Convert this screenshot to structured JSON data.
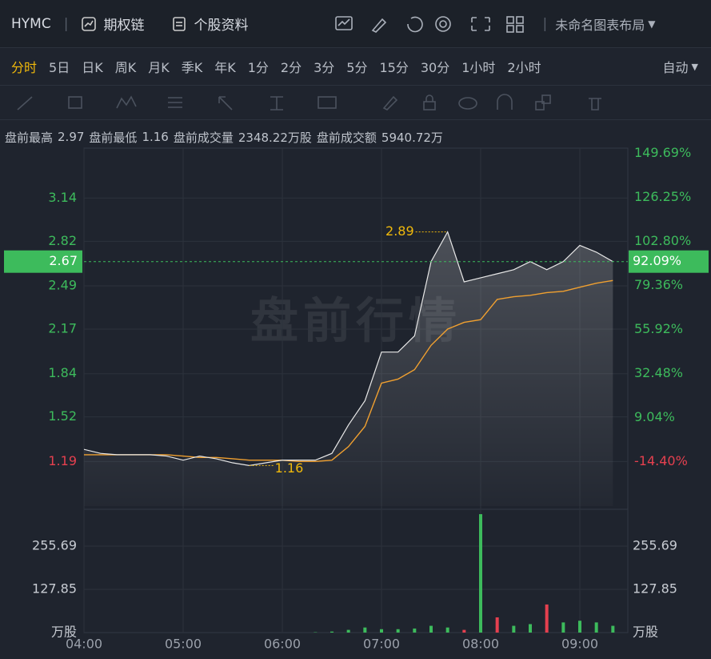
{
  "header": {
    "symbol": "HYMC",
    "links": [
      "期权链",
      "个股资料"
    ],
    "layout_name": "未命名图表布局"
  },
  "periods": {
    "items": [
      "分时",
      "5日",
      "日K",
      "周K",
      "月K",
      "季K",
      "年K",
      "1分",
      "2分",
      "3分",
      "5分",
      "15分",
      "30分",
      "1小时",
      "2小时"
    ],
    "active": 0,
    "mode": "自动"
  },
  "stats": [
    {
      "label": "盘前最高",
      "value": "2.97"
    },
    {
      "label": "盘前最低",
      "value": "1.16"
    },
    {
      "label": "盘前成交量",
      "value": "2348.22万股"
    },
    {
      "label": "盘前成交额",
      "value": "5940.72万"
    }
  ],
  "chart_data": {
    "type": "line",
    "watermark": "盘前行情",
    "categories": [
      "04:00",
      null,
      null,
      null,
      null,
      null,
      "05:00",
      null,
      null,
      null,
      null,
      null,
      "06:00",
      null,
      null,
      null,
      null,
      null,
      "07:00",
      null,
      null,
      null,
      null,
      null,
      "08:00",
      null,
      null,
      null,
      null,
      null,
      "09:00",
      null,
      null
    ],
    "series": [
      {
        "color": "#e8e8e8",
        "values": [
          1.28,
          1.25,
          1.24,
          1.24,
          1.24,
          1.23,
          1.2,
          1.23,
          1.21,
          1.18,
          1.16,
          1.18,
          1.2,
          1.2,
          1.2,
          1.25,
          1.46,
          1.64,
          2.0,
          2.0,
          2.12,
          2.67,
          2.89,
          2.52,
          2.55,
          2.58,
          2.61,
          2.67,
          2.61,
          2.67,
          2.79,
          2.74,
          2.67
        ]
      },
      {
        "color": "#f0a030",
        "values": [
          1.24,
          1.24,
          1.24,
          1.24,
          1.24,
          1.24,
          1.23,
          1.22,
          1.22,
          1.21,
          1.2,
          1.2,
          1.2,
          1.19,
          1.19,
          1.2,
          1.3,
          1.45,
          1.77,
          1.8,
          1.87,
          2.05,
          2.17,
          2.22,
          2.24,
          2.39,
          2.41,
          2.42,
          2.44,
          2.45,
          2.48,
          2.51,
          2.53
        ]
      }
    ],
    "ylim": [
      0.86,
      3.51
    ],
    "yticks": [
      1.19,
      1.52,
      1.84,
      2.17,
      2.49,
      2.82,
      3.14
    ],
    "y2lim": [
      -38.14,
      152.48
    ],
    "y2ticks": [
      {
        "value": -14.4,
        "label": "-14.40%"
      },
      {
        "value": 9.04,
        "label": "9.04%"
      },
      {
        "value": 32.48,
        "label": "32.48%"
      },
      {
        "value": 55.92,
        "label": "55.92%"
      },
      {
        "value": 79.36,
        "label": "79.36%"
      },
      {
        "value": 102.8,
        "label": "102.80%"
      },
      {
        "value": 126.25,
        "label": "126.25%"
      },
      {
        "value": 149.69,
        "label": "149.69%"
      }
    ],
    "last_price": 2.67,
    "last_change": {
      "value": 92.09,
      "label": "92.09%"
    },
    "high_label": 2.89,
    "low_label": 1.16,
    "grid": true,
    "up_color": "#3dbb5c",
    "down_color": "#e5404f",
    "volume": {
      "type": "bar",
      "unit": "万股",
      "ylim": [
        0,
        355
      ],
      "yticks": [
        127.85,
        255.69
      ],
      "values": [
        0,
        0,
        0,
        0,
        0,
        0,
        0,
        0,
        0,
        0,
        0,
        0,
        0,
        0,
        1,
        3,
        8,
        15,
        10,
        10,
        12,
        20,
        15,
        8,
        350,
        45,
        20,
        25,
        83,
        30,
        35,
        30,
        20
      ],
      "colors": [
        "#3dbb5c",
        "#3dbb5c",
        "#3dbb5c",
        "#3dbb5c",
        "#3dbb5c",
        "#3dbb5c",
        "#3dbb5c",
        "#3dbb5c",
        "#3dbb5c",
        "#3dbb5c",
        "#3dbb5c",
        "#3dbb5c",
        "#3dbb5c",
        "#3dbb5c",
        "#3dbb5c",
        "#3dbb5c",
        "#3dbb5c",
        "#3dbb5c",
        "#3dbb5c",
        "#3dbb5c",
        "#3dbb5c",
        "#3dbb5c",
        "#3dbb5c",
        "#e5404f",
        "#3dbb5c",
        "#e5404f",
        "#3dbb5c",
        "#3dbb5c",
        "#e5404f",
        "#3dbb5c",
        "#3dbb5c",
        "#3dbb5c",
        "#3dbb5c"
      ]
    }
  }
}
